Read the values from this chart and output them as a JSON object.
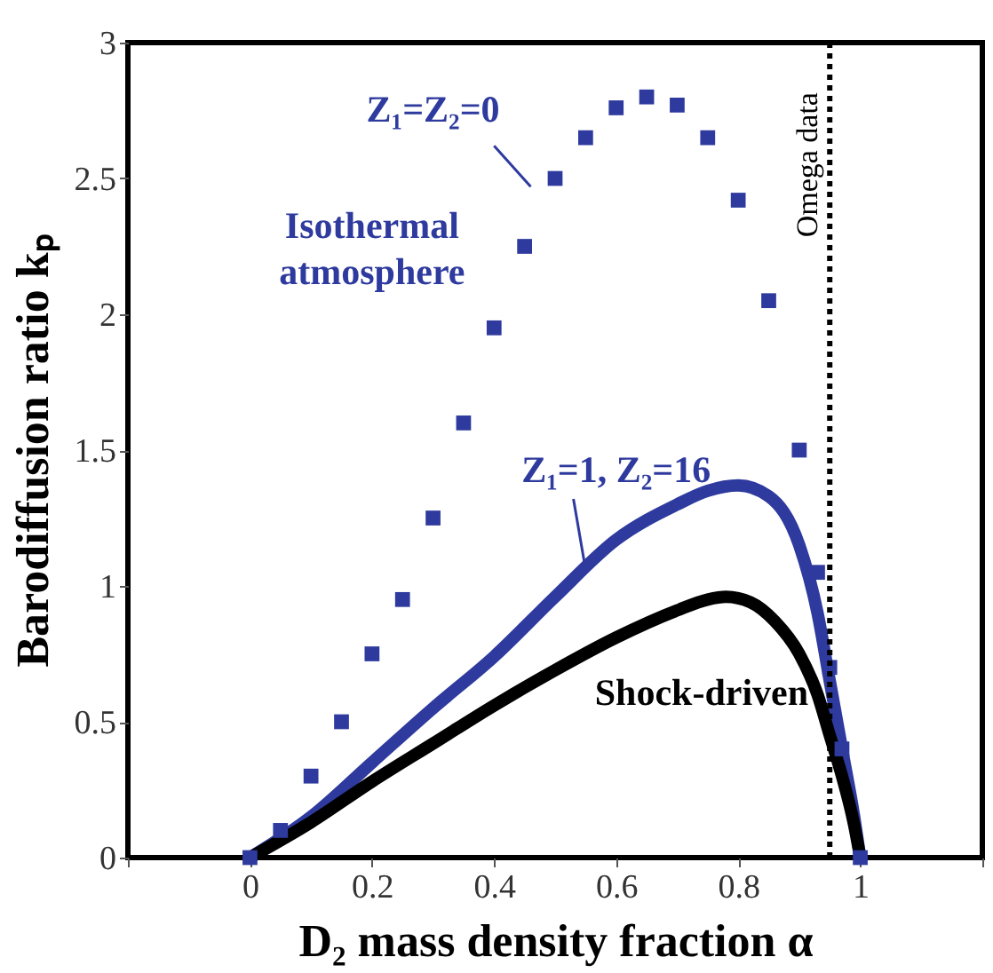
{
  "chart_data": {
    "type": "line",
    "xlabel": "D₂ mass density fraction α",
    "ylabel": "Barodiffusion ratio kₚ",
    "xlim": [
      -0.2,
      1.2
    ],
    "xticks": [
      {
        "value": -0.2,
        "label": null
      },
      0,
      0.2,
      0.4,
      0.6,
      0.8,
      1,
      {
        "value": 1.2,
        "label": null
      }
    ],
    "ylim": [
      0,
      3
    ],
    "yticks": [
      0,
      0.5,
      1,
      1.5,
      2,
      2.5,
      3
    ],
    "grid": false,
    "legend": false,
    "series": [
      {
        "name": "Z₁=Z₂=0",
        "type": "scatter",
        "marker": "square",
        "color": "#2e3a9e",
        "x": [
          0,
          0.05,
          0.1,
          0.15,
          0.2,
          0.25,
          0.3,
          0.35,
          0.4,
          0.45,
          0.5,
          0.55,
          0.6,
          0.65,
          0.7,
          0.75,
          0.8,
          0.85,
          0.9,
          0.93,
          0.95,
          0.97,
          1
        ],
        "values": [
          0,
          0.1,
          0.3,
          0.5,
          0.75,
          0.95,
          1.25,
          1.6,
          1.95,
          2.25,
          2.5,
          2.65,
          2.76,
          2.8,
          2.77,
          2.65,
          2.42,
          2.05,
          1.5,
          1.05,
          0.7,
          0.4,
          0
        ]
      },
      {
        "name": "Z₁=1, Z₂=16",
        "type": "line",
        "line_style": "solid",
        "color": "#2e3a9e",
        "x": [
          0,
          0.1,
          0.2,
          0.3,
          0.4,
          0.5,
          0.6,
          0.7,
          0.75,
          0.8,
          0.85,
          0.9,
          0.93,
          0.95,
          0.97,
          0.99,
          1
        ],
        "values": [
          0,
          0.15,
          0.35,
          0.55,
          0.74,
          0.96,
          1.17,
          1.3,
          1.35,
          1.37,
          1.33,
          1.15,
          0.9,
          0.65,
          0.4,
          0.15,
          0
        ]
      },
      {
        "name": "Shock-driven",
        "type": "line",
        "line_style": "solid",
        "color": "#000000",
        "x": [
          0,
          0.1,
          0.2,
          0.3,
          0.4,
          0.5,
          0.6,
          0.7,
          0.75,
          0.78,
          0.82,
          0.86,
          0.9,
          0.93,
          0.95,
          0.97,
          0.99,
          1
        ],
        "values": [
          0,
          0.13,
          0.28,
          0.42,
          0.56,
          0.69,
          0.81,
          0.91,
          0.95,
          0.96,
          0.94,
          0.87,
          0.75,
          0.6,
          0.45,
          0.3,
          0.12,
          0
        ]
      }
    ],
    "ref_lines": [
      {
        "axis": "x",
        "value": 0.95,
        "label": "Omega data",
        "line_style": "dotted",
        "color": "#000000"
      }
    ],
    "annotations": [
      "Isothermal atmosphere"
    ]
  }
}
